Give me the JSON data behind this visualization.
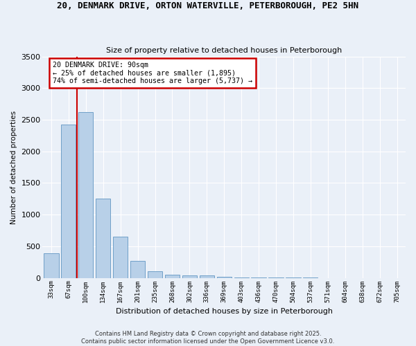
{
  "title": "20, DENMARK DRIVE, ORTON WATERVILLE, PETERBOROUGH, PE2 5HN",
  "subtitle": "Size of property relative to detached houses in Peterborough",
  "xlabel": "Distribution of detached houses by size in Peterborough",
  "ylabel": "Number of detached properties",
  "categories": [
    "33sqm",
    "67sqm",
    "100sqm",
    "134sqm",
    "167sqm",
    "201sqm",
    "235sqm",
    "268sqm",
    "302sqm",
    "336sqm",
    "369sqm",
    "403sqm",
    "436sqm",
    "470sqm",
    "504sqm",
    "537sqm",
    "571sqm",
    "604sqm",
    "638sqm",
    "672sqm",
    "705sqm"
  ],
  "values": [
    390,
    2420,
    2620,
    1250,
    650,
    270,
    100,
    55,
    45,
    35,
    15,
    10,
    8,
    5,
    3,
    2,
    1,
    1,
    0,
    0,
    0
  ],
  "bar_color": "#b8d0e8",
  "bar_edge_color": "#6fa0c8",
  "background_color": "#eaf0f8",
  "grid_color": "#ffffff",
  "property_label": "20 DENMARK DRIVE: 90sqm",
  "annotation_line1": "← 25% of detached houses are smaller (1,895)",
  "annotation_line2": "74% of semi-detached houses are larger (5,737) →",
  "annotation_box_edgecolor": "#cc0000",
  "vline_color": "#cc0000",
  "vline_x_idx": 1.5,
  "ylim": [
    0,
    3500
  ],
  "yticks": [
    0,
    500,
    1000,
    1500,
    2000,
    2500,
    3000,
    3500
  ],
  "footer_line1": "Contains HM Land Registry data © Crown copyright and database right 2025.",
  "footer_line2": "Contains public sector information licensed under the Open Government Licence v3.0."
}
